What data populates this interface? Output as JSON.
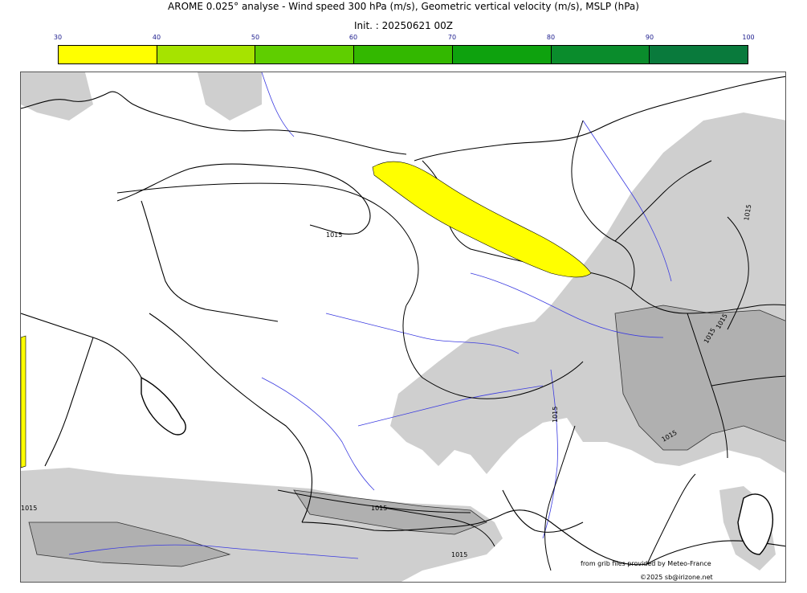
{
  "title_line1": "AROME 0.025° analyse - Wind speed 300 hPa (m/s), Geometric vertical velocity (m/s), MSLP (hPa)",
  "title_line2": "Init. : 20250621 00Z",
  "colorbar": {
    "ticks": [
      "30",
      "40",
      "50",
      "60",
      "70",
      "80",
      "90",
      "100"
    ],
    "colors": [
      "#ffff00",
      "#a6e300",
      "#5fce00",
      "#33b800",
      "#0ea20e",
      "#0a8c2c",
      "#097a3c",
      "#0a6e4a"
    ]
  },
  "map": {
    "isobar_labels": [
      "1015",
      "1015",
      "1015",
      "1015",
      "1015",
      "1015",
      "1015",
      "1015",
      "1015"
    ],
    "jet_color": "#ffff00",
    "relief_color": "#cfcfcf",
    "river_color": "#3a3ae0"
  },
  "credits": {
    "line1": "from grib files provided by Meteo-France",
    "line2": "©2025 sb@irizone.net"
  }
}
